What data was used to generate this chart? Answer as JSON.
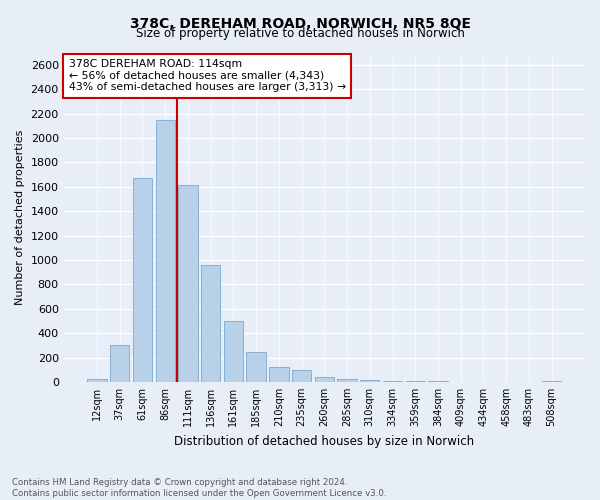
{
  "title": "378C, DEREHAM ROAD, NORWICH, NR5 8QE",
  "subtitle": "Size of property relative to detached houses in Norwich",
  "xlabel": "Distribution of detached houses by size in Norwich",
  "ylabel": "Number of detached properties",
  "bar_color": "#b8d0e8",
  "bar_edge_color": "#7aaad0",
  "categories": [
    "12sqm",
    "37sqm",
    "61sqm",
    "86sqm",
    "111sqm",
    "136sqm",
    "161sqm",
    "185sqm",
    "210sqm",
    "235sqm",
    "260sqm",
    "285sqm",
    "310sqm",
    "334sqm",
    "359sqm",
    "384sqm",
    "409sqm",
    "434sqm",
    "458sqm",
    "483sqm",
    "508sqm"
  ],
  "values": [
    22,
    300,
    1670,
    2150,
    1610,
    960,
    500,
    245,
    120,
    95,
    40,
    20,
    15,
    10,
    8,
    5,
    3,
    2,
    1,
    1,
    8
  ],
  "vline_index": 4,
  "vline_color": "#cc0000",
  "annotation_text": "378C DEREHAM ROAD: 114sqm\n← 56% of detached houses are smaller (4,343)\n43% of semi-detached houses are larger (3,313) →",
  "annotation_box_color": "#ffffff",
  "annotation_box_edgecolor": "#cc0000",
  "ylim": [
    0,
    2700
  ],
  "yticks": [
    0,
    200,
    400,
    600,
    800,
    1000,
    1200,
    1400,
    1600,
    1800,
    2000,
    2200,
    2400,
    2600
  ],
  "footer_line1": "Contains HM Land Registry data © Crown copyright and database right 2024.",
  "footer_line2": "Contains public sector information licensed under the Open Government Licence v3.0.",
  "bg_color": "#e8eef8",
  "plot_bg_color": "#e8eef8"
}
